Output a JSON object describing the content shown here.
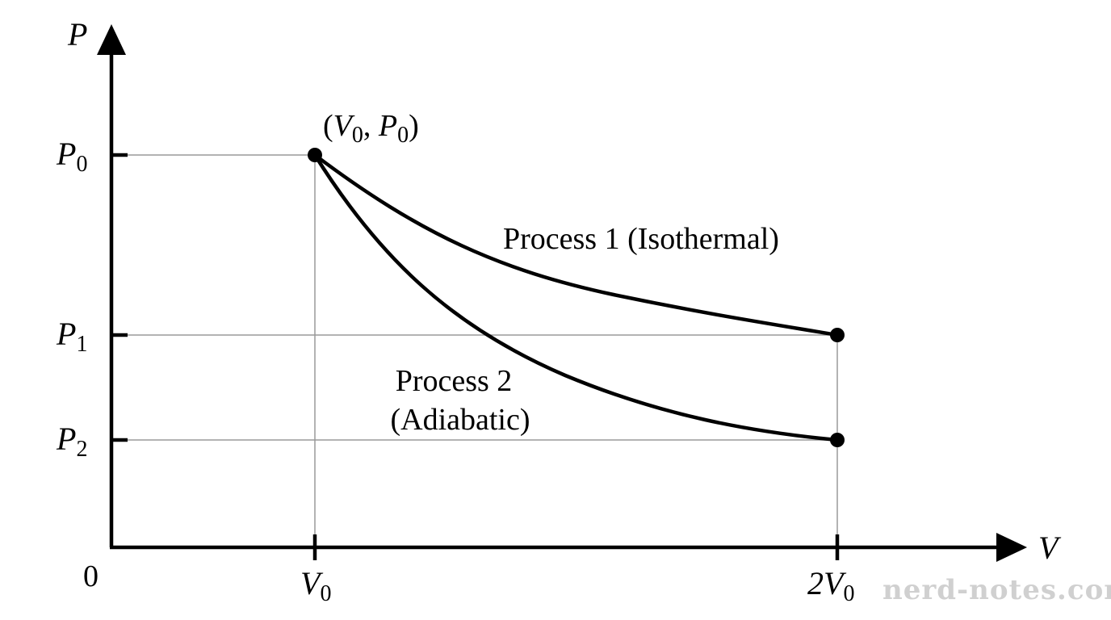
{
  "axes": {
    "y_label": "P",
    "x_label": "V",
    "origin_label": "0"
  },
  "ticks": {
    "y": [
      {
        "main": "P",
        "sub": "0"
      },
      {
        "main": "P",
        "sub": "1"
      },
      {
        "main": "P",
        "sub": "2"
      }
    ],
    "x": [
      {
        "main": "V",
        "sub": "0"
      },
      {
        "main": "2V",
        "sub": "0"
      }
    ]
  },
  "point_label": {
    "open": "(",
    "v": "V",
    "v_sub": "0",
    "sep": ", ",
    "p": "P",
    "p_sub": "0",
    "close": ")"
  },
  "processes": {
    "isothermal": "Process 1 (Isothermal)",
    "adiabatic_line1": "Process 2",
    "adiabatic_line2": "(Adiabatic)"
  },
  "watermark": "nerd-notes.com",
  "colors": {
    "ink": "#000000",
    "guide": "#9a9a9a",
    "watermark": "#d0d0d0"
  }
}
